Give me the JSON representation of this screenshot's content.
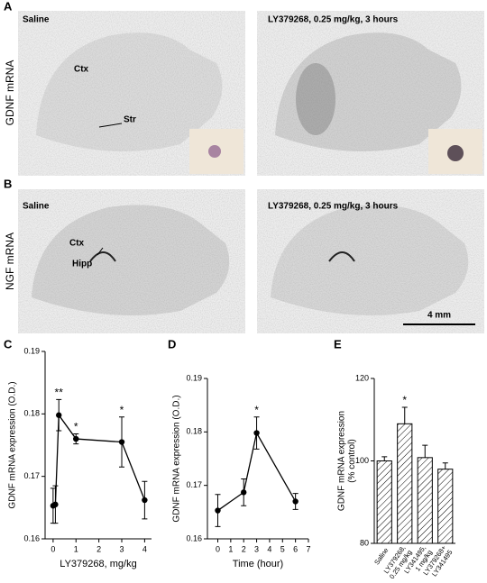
{
  "panels": {
    "A": {
      "label": "A",
      "ylabel": "GDNF mRNA",
      "left_title": "Saline",
      "right_title": "LY379268, 0.25 mg/kg, 3 hours",
      "region1": "Ctx",
      "region2": "Str"
    },
    "B": {
      "label": "B",
      "ylabel": "NGF mRNA",
      "left_title": "Saline",
      "right_title": "LY379268, 0.25 mg/kg, 3 hours",
      "region1": "Ctx",
      "region2": "Hipp",
      "scale_bar": "4 mm"
    }
  },
  "chart_data": [
    {
      "type": "line",
      "label": "C",
      "ylabel": "GDNF mRNA expression (O.D.)",
      "xlabel": "LY379268, mg/kg",
      "x": [
        0,
        0.1,
        0.25,
        1,
        3,
        4
      ],
      "series": [
        {
          "values": [
            0.1653,
            0.1655,
            0.1798,
            0.176,
            0.1755,
            0.1662
          ],
          "errors": [
            0.0028,
            0.003,
            0.0025,
            0.0008,
            0.004,
            0.003
          ],
          "significance": [
            null,
            null,
            "**",
            "*",
            "*",
            null
          ]
        }
      ],
      "xlim": [
        -0.35,
        4.3
      ],
      "xticks": [
        0,
        1,
        2,
        3,
        4
      ],
      "ylim": [
        0.16,
        0.19
      ],
      "yticks": [
        0.16,
        0.17,
        0.18,
        0.19
      ]
    },
    {
      "type": "line",
      "label": "D",
      "ylabel": "GDNF mRNA expression (O.D.)",
      "xlabel": "Time (hour)",
      "x": [
        0,
        2,
        3,
        6
      ],
      "series": [
        {
          "values": [
            0.1653,
            0.1687,
            0.1798,
            0.167
          ],
          "errors": [
            0.003,
            0.0025,
            0.003,
            0.0015
          ],
          "significance": [
            null,
            null,
            "*",
            null
          ]
        }
      ],
      "xlim": [
        -0.8,
        7
      ],
      "xticks": [
        0,
        1,
        2,
        3,
        4,
        5,
        6,
        7
      ],
      "ylim": [
        0.16,
        0.19
      ],
      "yticks": [
        0.16,
        0.17,
        0.18,
        0.19
      ]
    },
    {
      "type": "bar",
      "label": "E",
      "ylabel": "GDNF mRNA expression\n(% control)",
      "categories": [
        "Saline",
        "LY379268,\n0.25 mg/kg",
        "LY341495,\n1 mg/kg",
        "LY379268+\nLY341495"
      ],
      "values": [
        100,
        109,
        100.8,
        98
      ],
      "errors": [
        1,
        4,
        3,
        1.5
      ],
      "significance": [
        null,
        "*",
        null,
        null
      ],
      "ylim": [
        80,
        120
      ],
      "yticks": [
        80,
        100,
        120
      ]
    }
  ]
}
